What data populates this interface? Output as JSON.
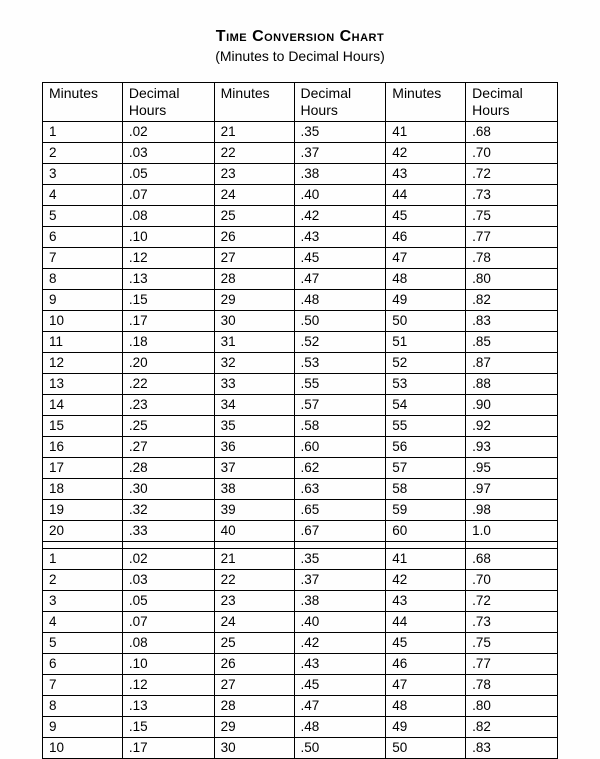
{
  "title": "Time Conversion Chart",
  "subtitle": "(Minutes to Decimal Hours)",
  "headers": {
    "minutes": "Minutes",
    "decimal": "Decimal Hours"
  },
  "table1": {
    "rows": [
      [
        "1",
        ".02",
        "21",
        ".35",
        "41",
        ".68"
      ],
      [
        "2",
        ".03",
        "22",
        ".37",
        "42",
        ".70"
      ],
      [
        "3",
        ".05",
        "23",
        ".38",
        "43",
        ".72"
      ],
      [
        "4",
        ".07",
        "24",
        ".40",
        "44",
        ".73"
      ],
      [
        "5",
        ".08",
        "25",
        ".42",
        "45",
        ".75"
      ],
      [
        "6",
        ".10",
        "26",
        ".43",
        "46",
        ".77"
      ],
      [
        "7",
        ".12",
        "27",
        ".45",
        "47",
        ".78"
      ],
      [
        "8",
        ".13",
        "28",
        ".47",
        "48",
        ".80"
      ],
      [
        "9",
        ".15",
        "29",
        ".48",
        "49",
        ".82"
      ],
      [
        "10",
        ".17",
        "30",
        ".50",
        "50",
        ".83"
      ],
      [
        "11",
        ".18",
        "31",
        ".52",
        "51",
        ".85"
      ],
      [
        "12",
        ".20",
        "32",
        ".53",
        "52",
        ".87"
      ],
      [
        "13",
        ".22",
        "33",
        ".55",
        "53",
        ".88"
      ],
      [
        "14",
        ".23",
        "34",
        ".57",
        "54",
        ".90"
      ],
      [
        "15",
        ".25",
        "35",
        ".58",
        "55",
        ".92"
      ],
      [
        "16",
        ".27",
        "36",
        ".60",
        "56",
        ".93"
      ],
      [
        "17",
        ".28",
        "37",
        ".62",
        "57",
        ".95"
      ],
      [
        "18",
        ".30",
        "38",
        ".63",
        "58",
        ".97"
      ],
      [
        "19",
        ".32",
        "39",
        ".65",
        "59",
        ".98"
      ],
      [
        "20",
        ".33",
        "40",
        ".67",
        "60",
        "1.0"
      ]
    ]
  },
  "table2": {
    "rows": [
      [
        "1",
        ".02",
        "21",
        ".35",
        "41",
        ".68"
      ],
      [
        "2",
        ".03",
        "22",
        ".37",
        "42",
        ".70"
      ],
      [
        "3",
        ".05",
        "23",
        ".38",
        "43",
        ".72"
      ],
      [
        "4",
        ".07",
        "24",
        ".40",
        "44",
        ".73"
      ],
      [
        "5",
        ".08",
        "25",
        ".42",
        "45",
        ".75"
      ],
      [
        "6",
        ".10",
        "26",
        ".43",
        "46",
        ".77"
      ],
      [
        "7",
        ".12",
        "27",
        ".45",
        "47",
        ".78"
      ],
      [
        "8",
        ".13",
        "28",
        ".47",
        "48",
        ".80"
      ],
      [
        "9",
        ".15",
        "29",
        ".48",
        "49",
        ".82"
      ],
      [
        "10",
        ".17",
        "30",
        ".50",
        "50",
        ".83"
      ]
    ]
  },
  "style": {
    "background_color": "#fefefe",
    "text_color": "#000000",
    "border_color": "#000000",
    "title_fontsize": 16,
    "subtitle_fontsize": 14,
    "cell_fontsize": 13.5,
    "font_family": "Arial"
  }
}
